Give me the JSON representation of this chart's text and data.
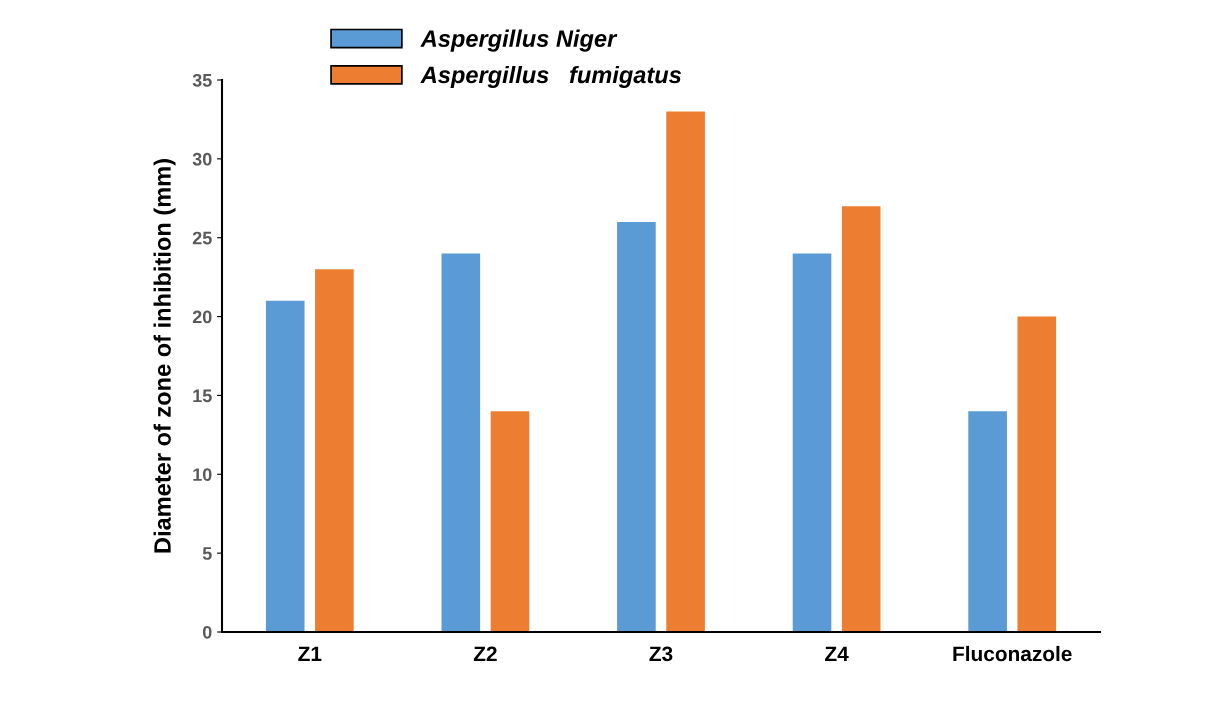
{
  "chart_data": {
    "type": "bar",
    "ylabel": "Diameter of zone of inhibition (mm)",
    "categories": [
      "Z1",
      "Z2",
      "Z3",
      "Z4",
      "Fluconazole"
    ],
    "series": [
      {
        "name": "Aspergillus Niger",
        "color": "#5b9bd5",
        "values": [
          21,
          24,
          26,
          24,
          14
        ]
      },
      {
        "name": "Aspergillus   fumigatus",
        "color": "#ed7d31",
        "values": [
          23,
          14,
          33,
          27,
          20
        ]
      }
    ],
    "ylim": [
      0,
      35
    ],
    "yticks": [
      0,
      5,
      10,
      15,
      20,
      25,
      30,
      35
    ],
    "grid": false,
    "legend": "top left"
  }
}
